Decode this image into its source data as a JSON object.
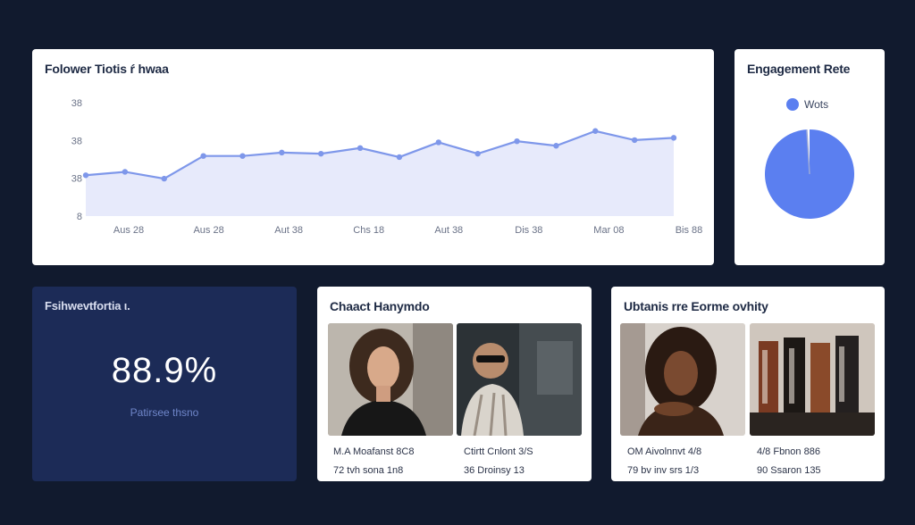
{
  "followers": {
    "title": "Folower Tiotis ŕ hwaa"
  },
  "chart_data": {
    "type": "area",
    "title": "Folower Tiotis ŕ hwaa",
    "y_ticks": [
      "38",
      "38",
      "38",
      "8"
    ],
    "x_ticks": [
      "Aus 28",
      "Aus 28",
      "Aut 38",
      "Chs 18",
      "Aut 38",
      "Dis 38",
      "Mar 08",
      "Bis 88"
    ],
    "ylim": [
      0,
      100
    ],
    "series": [
      {
        "values": [
          36,
          39,
          33,
          53,
          53,
          56,
          55,
          60,
          52,
          65,
          55,
          66,
          62,
          75,
          67,
          69
        ]
      }
    ],
    "color": "#7e97ea",
    "fill_color": "#e7eafb"
  },
  "engagement": {
    "title": "Engagement Rete",
    "legend_label": "Wots",
    "color": "#5b7ff0",
    "pie_values": [
      99,
      1
    ]
  },
  "growth": {
    "title": "Fsihwevtfortia ι.",
    "value": "88.9%",
    "subtitle": "Patirsee  thsno"
  },
  "content": {
    "title": "Chaact Hanymdo",
    "items": [
      {
        "line1": "M.A Moafanst 8C8",
        "line2": "72 tvh sona 1n8"
      },
      {
        "line1": "Ctirtt Cnlont 3/S",
        "line2": "36 Droinsy 13"
      }
    ]
  },
  "community": {
    "title": "Ubtanis rre Eorme ovhity",
    "items": [
      {
        "line1": "OM Aivolnnvt 4/8",
        "line2": "79 bv inv srs 1/3"
      },
      {
        "line1": "4/8 Fbnon 886",
        "line2": "90 Ssaron 135"
      }
    ]
  }
}
